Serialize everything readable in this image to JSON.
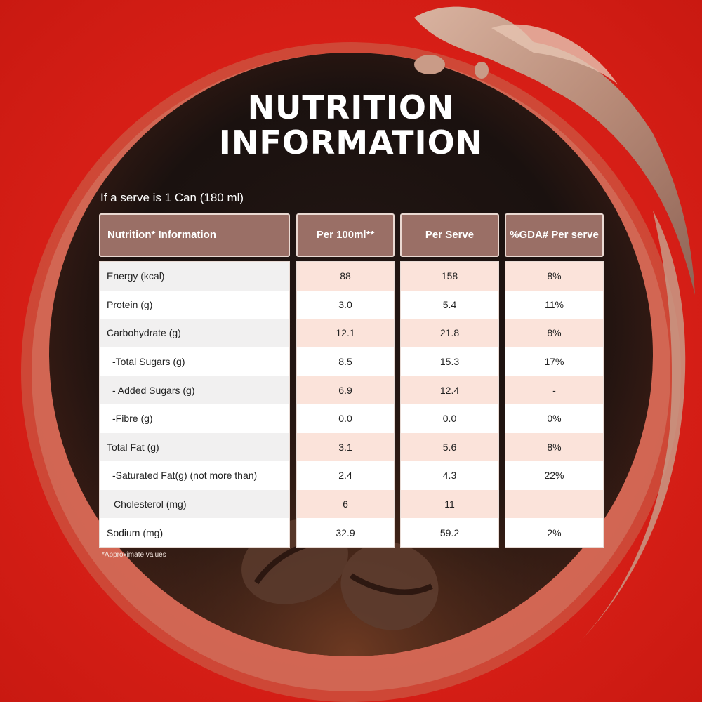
{
  "title_line1": "NUTRITION",
  "title_line2": "INFORMATION",
  "serve_note": "If a serve is 1 Can (180 ml)",
  "headers": {
    "nutrition": "Nutrition* Information",
    "per100": "Per 100ml**",
    "perServe": "Per Serve",
    "gda": "%GDA# Per serve"
  },
  "rows": [
    {
      "label": "Energy (kcal)",
      "per100": "88",
      "perServe": "158",
      "gda": "8%"
    },
    {
      "label": "Protein (g)",
      "per100": "3.0",
      "perServe": "5.4",
      "gda": "11%"
    },
    {
      "label": "Carbohydrate (g)",
      "per100": "12.1",
      "perServe": "21.8",
      "gda": "8%"
    },
    {
      "label": "-Total Sugars (g)",
      "per100": "8.5",
      "perServe": "15.3",
      "gda": "17%"
    },
    {
      "label": "- Added Sugars (g)",
      "per100": "6.9",
      "perServe": "12.4",
      "gda": "-"
    },
    {
      "label": "-Fibre (g)",
      "per100": "0.0",
      "perServe": "0.0",
      "gda": "0%"
    },
    {
      "label": "Total Fat (g)",
      "per100": "3.1",
      "perServe": "5.6",
      "gda": "8%"
    },
    {
      "label": "-Saturated Fat(g) (not more than)",
      "per100": "2.4",
      "perServe": "4.3",
      "gda": "22%"
    },
    {
      "label": "Cholesterol (mg)",
      "per100": "6",
      "perServe": "11",
      "gda": ""
    },
    {
      "label": "Sodium (mg)",
      "per100": "32.9",
      "perServe": "59.2",
      "gda": "2%"
    }
  ],
  "footnote": "*Approximate values",
  "colors": {
    "background_red": "#d81f17",
    "circle_dark": "#1f1512",
    "header_brown": "#9a6f66",
    "row_tint": "#fbe3da"
  }
}
